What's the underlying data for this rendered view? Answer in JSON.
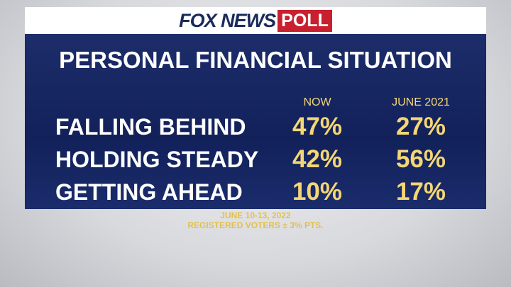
{
  "header": {
    "brand": "FOX NEWS",
    "badge": "POLL"
  },
  "title": "PERSONAL FINANCIAL SITUATION",
  "table": {
    "columns": [
      "NOW",
      "JUNE 2021"
    ],
    "rows": [
      [
        "FALLING BEHIND",
        "47%",
        "27%"
      ],
      [
        "HOLDING STEADY",
        "42%",
        "56%"
      ],
      [
        "GETTING AHEAD",
        "10%",
        "17%"
      ]
    ]
  },
  "footer": {
    "dates": "JUNE 10-13, 2022",
    "sample": "REGISTERED VOTERS ± 3% PTS."
  }
}
